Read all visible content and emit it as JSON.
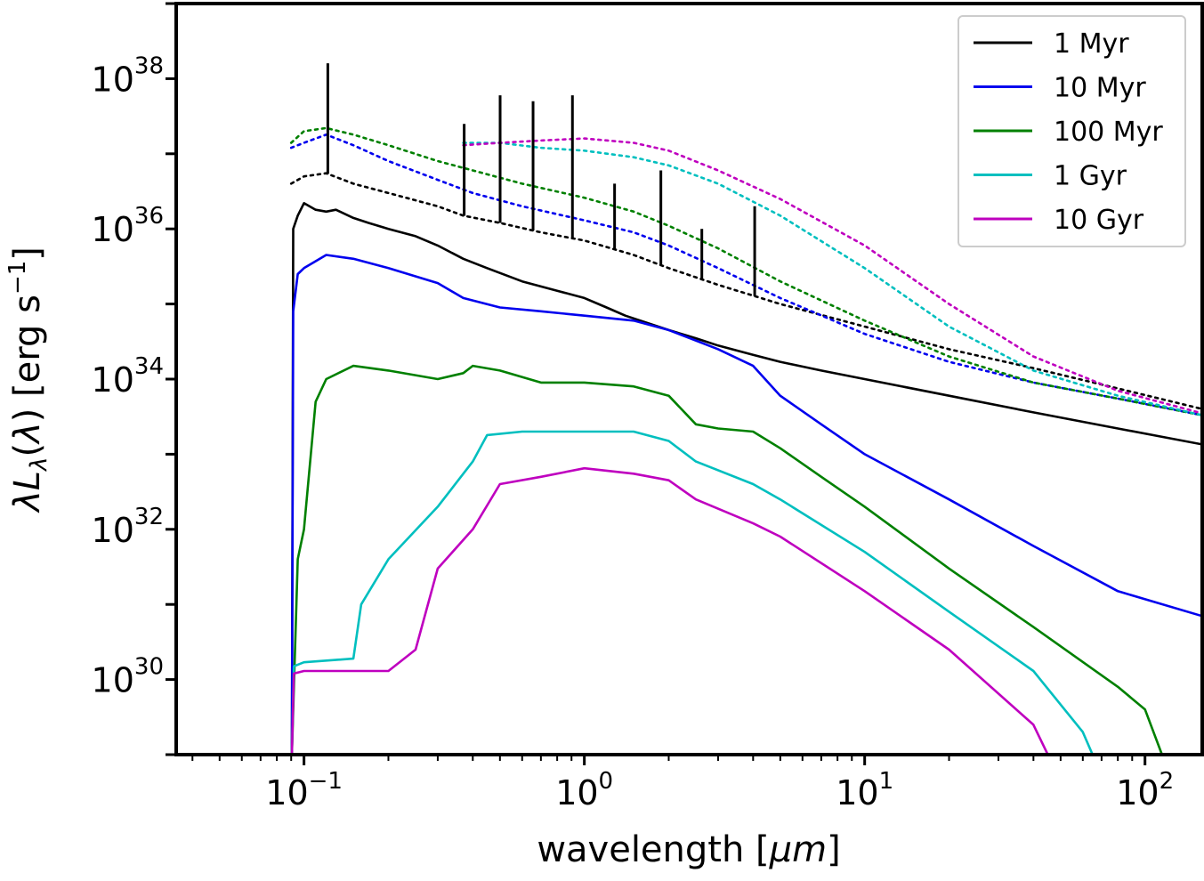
{
  "chart_data": {
    "type": "line",
    "title": "",
    "xlabel": "wavelength [μm]",
    "ylabel": "λLλ(λ) [erg s⁻¹]",
    "xscale": "log",
    "yscale": "log",
    "xlim": [
      0.035,
      160
    ],
    "ylim": [
      1e+29,
      1e+39
    ],
    "x_ticks": [
      {
        "value": 0.1,
        "base": "10",
        "exp": "−1"
      },
      {
        "value": 1,
        "base": "10",
        "exp": "0"
      },
      {
        "value": 10,
        "base": "10",
        "exp": "1"
      },
      {
        "value": 100,
        "base": "10",
        "exp": "2"
      }
    ],
    "y_ticks": [
      {
        "value": 1e+30,
        "base": "10",
        "exp": "30"
      },
      {
        "value": 1e+32,
        "base": "10",
        "exp": "32"
      },
      {
        "value": 1e+34,
        "base": "10",
        "exp": "34"
      },
      {
        "value": 1e+36,
        "base": "10",
        "exp": "36"
      },
      {
        "value": 1e+38,
        "base": "10",
        "exp": "38"
      }
    ],
    "legend": {
      "position": "top-right",
      "entries": [
        {
          "label": "1 Myr",
          "color": "#000000"
        },
        {
          "label": "10 Myr",
          "color": "#0000ee"
        },
        {
          "label": "100 Myr",
          "color": "#008000"
        },
        {
          "label": "1 Gyr",
          "color": "#00bfbf"
        },
        {
          "label": "10 Gyr",
          "color": "#bf00bf"
        }
      ]
    },
    "series": [
      {
        "name": "1 Myr",
        "style": "solid",
        "color": "#000000",
        "points": [
          [
            0.0905,
            1e+29
          ],
          [
            0.0915,
            1e+36
          ],
          [
            0.095,
            1.5e+36
          ],
          [
            0.1,
            2.2e+36
          ],
          [
            0.11,
            1.8e+36
          ],
          [
            0.12,
            1.7e+36
          ],
          [
            0.13,
            1.8e+36
          ],
          [
            0.15,
            1.4e+36
          ],
          [
            0.17,
            1.2e+36
          ],
          [
            0.2,
            1e+36
          ],
          [
            0.25,
            8e+35
          ],
          [
            0.3,
            6e+35
          ],
          [
            0.37,
            4e+35
          ],
          [
            0.45,
            3e+35
          ],
          [
            0.6,
            2e+35
          ],
          [
            0.8,
            1.5e+35
          ],
          [
            1.0,
            1.2e+35
          ],
          [
            1.2,
            9e+34
          ],
          [
            1.4,
            7e+34
          ],
          [
            1.7,
            5.5e+34
          ],
          [
            2.0,
            4.5e+34
          ],
          [
            2.5,
            3.5e+34
          ],
          [
            3.0,
            2.8e+34
          ],
          [
            4.0,
            2.1e+34
          ],
          [
            5.0,
            1.7e+34
          ],
          [
            7.0,
            1.3e+34
          ],
          [
            10,
            1e+34
          ],
          [
            20,
            6e+33
          ],
          [
            40,
            3.6e+33
          ],
          [
            80,
            2.2e+33
          ],
          [
            160,
            1.35e+33
          ]
        ]
      },
      {
        "name": "1 Myr nebular",
        "style": "dotted",
        "color": "#000000",
        "points": [
          [
            0.09,
            4e+36
          ],
          [
            0.1,
            5e+36
          ],
          [
            0.12,
            5.5e+36
          ],
          [
            0.15,
            4e+36
          ],
          [
            0.2,
            3e+36
          ],
          [
            0.3,
            2e+36
          ],
          [
            0.37,
            1.5e+36
          ],
          [
            0.5,
            1.2e+36
          ],
          [
            0.7,
            9e+35
          ],
          [
            1.0,
            7e+35
          ],
          [
            1.5,
            4.5e+35
          ],
          [
            2,
            3e+35
          ],
          [
            3,
            1.8e+35
          ],
          [
            5,
            1e+35
          ],
          [
            10,
            5e+34
          ],
          [
            20,
            2.5e+34
          ],
          [
            40,
            1.4e+34
          ],
          [
            80,
            7.5e+33
          ],
          [
            160,
            4e+33
          ]
        ]
      },
      {
        "name": "10 Myr",
        "style": "solid",
        "color": "#0000ee",
        "points": [
          [
            0.0905,
            1e+29
          ],
          [
            0.0915,
            8e+34
          ],
          [
            0.095,
            2.5e+35
          ],
          [
            0.1,
            3e+35
          ],
          [
            0.12,
            4.5e+35
          ],
          [
            0.15,
            4e+35
          ],
          [
            0.2,
            3e+35
          ],
          [
            0.3,
            1.9e+35
          ],
          [
            0.37,
            1.2e+35
          ],
          [
            0.5,
            9e+34
          ],
          [
            0.7,
            8e+34
          ],
          [
            1.0,
            7e+34
          ],
          [
            1.5,
            6e+34
          ],
          [
            2.0,
            4.5e+34
          ],
          [
            3.0,
            2.5e+34
          ],
          [
            4.0,
            1.5e+34
          ],
          [
            5.0,
            6e+33
          ],
          [
            7.0,
            2.5e+33
          ],
          [
            10,
            1e+33
          ],
          [
            20,
            2.5e+32
          ],
          [
            40,
            6e+31
          ],
          [
            80,
            1.5e+31
          ],
          [
            160,
            7e+30
          ]
        ]
      },
      {
        "name": "10 Myr nebular",
        "style": "dotted",
        "color": "#0000ee",
        "points": [
          [
            0.09,
            1.2e+37
          ],
          [
            0.1,
            1.4e+37
          ],
          [
            0.12,
            1.8e+37
          ],
          [
            0.15,
            1.3e+37
          ],
          [
            0.2,
            8e+36
          ],
          [
            0.3,
            4.5e+36
          ],
          [
            0.4,
            3e+36
          ],
          [
            0.6,
            2e+36
          ],
          [
            1.0,
            1.3e+36
          ],
          [
            1.5,
            9e+35
          ],
          [
            2.0,
            6e+35
          ],
          [
            3.0,
            3e+35
          ],
          [
            5,
            1.2e+35
          ],
          [
            10,
            4e+34
          ],
          [
            20,
            1.7e+34
          ],
          [
            40,
            9e+33
          ],
          [
            80,
            5.5e+33
          ],
          [
            160,
            3.3e+33
          ]
        ]
      },
      {
        "name": "100 Myr",
        "style": "solid",
        "color": "#008000",
        "points": [
          [
            0.0905,
            1e+29
          ],
          [
            0.095,
            4e+31
          ],
          [
            0.1,
            1e+32
          ],
          [
            0.11,
            5e+33
          ],
          [
            0.12,
            1e+34
          ],
          [
            0.15,
            1.5e+34
          ],
          [
            0.2,
            1.3e+34
          ],
          [
            0.3,
            1e+34
          ],
          [
            0.37,
            1.2e+34
          ],
          [
            0.4,
            1.5e+34
          ],
          [
            0.5,
            1.3e+34
          ],
          [
            0.7,
            9e+33
          ],
          [
            1.0,
            9e+33
          ],
          [
            1.5,
            8e+33
          ],
          [
            2.0,
            6e+33
          ],
          [
            2.5,
            2.5e+33
          ],
          [
            3.0,
            2.2e+33
          ],
          [
            4.0,
            2e+33
          ],
          [
            5.0,
            1.2e+33
          ],
          [
            7.0,
            5e+32
          ],
          [
            10,
            2e+32
          ],
          [
            20,
            3e+31
          ],
          [
            40,
            5e+30
          ],
          [
            80,
            8e+29
          ],
          [
            100,
            4e+29
          ],
          [
            115,
            1e+29
          ]
        ]
      },
      {
        "name": "100 Myr nebular",
        "style": "dotted",
        "color": "#008000",
        "points": [
          [
            0.09,
            1.4e+37
          ],
          [
            0.1,
            2e+37
          ],
          [
            0.12,
            2.2e+37
          ],
          [
            0.15,
            1.8e+37
          ],
          [
            0.2,
            1.3e+37
          ],
          [
            0.3,
            8e+36
          ],
          [
            0.4,
            6e+36
          ],
          [
            0.6,
            4e+36
          ],
          [
            1.0,
            2.6e+36
          ],
          [
            1.5,
            1.7e+36
          ],
          [
            2.0,
            1.1e+36
          ],
          [
            3.0,
            5.5e+35
          ],
          [
            5,
            2e+35
          ],
          [
            10,
            6e+34
          ],
          [
            20,
            2e+34
          ],
          [
            40,
            9e+33
          ],
          [
            80,
            5.5e+33
          ],
          [
            160,
            3.3e+33
          ]
        ]
      },
      {
        "name": "1 Gyr",
        "style": "solid",
        "color": "#00bfbf",
        "points": [
          [
            0.0905,
            1e+29
          ],
          [
            0.092,
            1.5e+30
          ],
          [
            0.1,
            1.7e+30
          ],
          [
            0.15,
            1.9e+30
          ],
          [
            0.16,
            1e+31
          ],
          [
            0.2,
            4e+31
          ],
          [
            0.3,
            2e+32
          ],
          [
            0.4,
            8e+32
          ],
          [
            0.45,
            1.8e+33
          ],
          [
            0.6,
            2e+33
          ],
          [
            1.0,
            2e+33
          ],
          [
            1.5,
            2e+33
          ],
          [
            2.0,
            1.5e+33
          ],
          [
            2.5,
            8e+32
          ],
          [
            4.0,
            4e+32
          ],
          [
            5.0,
            2.5e+32
          ],
          [
            10,
            5e+31
          ],
          [
            20,
            8e+30
          ],
          [
            40,
            1.3e+30
          ],
          [
            60,
            2e+29
          ],
          [
            65,
            1e+29
          ]
        ]
      },
      {
        "name": "1 Gyr nebular",
        "style": "dotted",
        "color": "#00bfbf",
        "points": [
          [
            0.37,
            1.4e+37
          ],
          [
            0.5,
            1.4e+37
          ],
          [
            0.7,
            1.2e+37
          ],
          [
            1.0,
            1.1e+37
          ],
          [
            1.5,
            9e+36
          ],
          [
            2.0,
            7e+36
          ],
          [
            3.0,
            4e+36
          ],
          [
            5,
            1.5e+36
          ],
          [
            10,
            3e+35
          ],
          [
            20,
            5e+34
          ],
          [
            40,
            1.3e+34
          ],
          [
            80,
            6e+33
          ],
          [
            160,
            3.3e+33
          ]
        ]
      },
      {
        "name": "10 Gyr",
        "style": "solid",
        "color": "#bf00bf",
        "points": [
          [
            0.0905,
            1e+29
          ],
          [
            0.092,
            1.2e+30
          ],
          [
            0.1,
            1.3e+30
          ],
          [
            0.2,
            1.3e+30
          ],
          [
            0.25,
            2.5e+30
          ],
          [
            0.3,
            3e+31
          ],
          [
            0.4,
            1e+32
          ],
          [
            0.5,
            4e+32
          ],
          [
            0.7,
            5e+32
          ],
          [
            1.0,
            6.5e+32
          ],
          [
            1.5,
            5.5e+32
          ],
          [
            2.0,
            4.5e+32
          ],
          [
            2.5,
            2.5e+32
          ],
          [
            4.0,
            1.2e+32
          ],
          [
            5.0,
            8e+31
          ],
          [
            10,
            1.5e+31
          ],
          [
            20,
            2.5e+30
          ],
          [
            40,
            2.5e+29
          ],
          [
            45,
            1e+29
          ]
        ]
      },
      {
        "name": "10 Gyr nebular",
        "style": "dotted",
        "color": "#bf00bf",
        "points": [
          [
            0.37,
            1.3e+37
          ],
          [
            0.5,
            1.4e+37
          ],
          [
            0.7,
            1.5e+37
          ],
          [
            1.0,
            1.6e+37
          ],
          [
            1.5,
            1.4e+37
          ],
          [
            2.0,
            1.1e+37
          ],
          [
            3.0,
            6e+36
          ],
          [
            5,
            2.5e+36
          ],
          [
            10,
            6e+35
          ],
          [
            20,
            1e+35
          ],
          [
            40,
            2e+34
          ],
          [
            80,
            7e+33
          ],
          [
            160,
            3.5e+33
          ]
        ]
      }
    ],
    "emission_lines": [
      {
        "wavelength": 0.1216,
        "peak": 1.6e+38
      },
      {
        "wavelength": 0.3727,
        "peak": 2.5e+37
      },
      {
        "wavelength": 0.5007,
        "peak": 6e+37
      },
      {
        "wavelength": 0.6563,
        "peak": 5e+37
      },
      {
        "wavelength": 0.9069,
        "peak": 6e+37
      },
      {
        "wavelength": 1.282,
        "peak": 4e+36
      },
      {
        "wavelength": 1.875,
        "peak": 6e+36
      },
      {
        "wavelength": 2.625,
        "peak": 1e+36
      },
      {
        "wavelength": 4.052,
        "peak": 2e+36
      }
    ]
  }
}
